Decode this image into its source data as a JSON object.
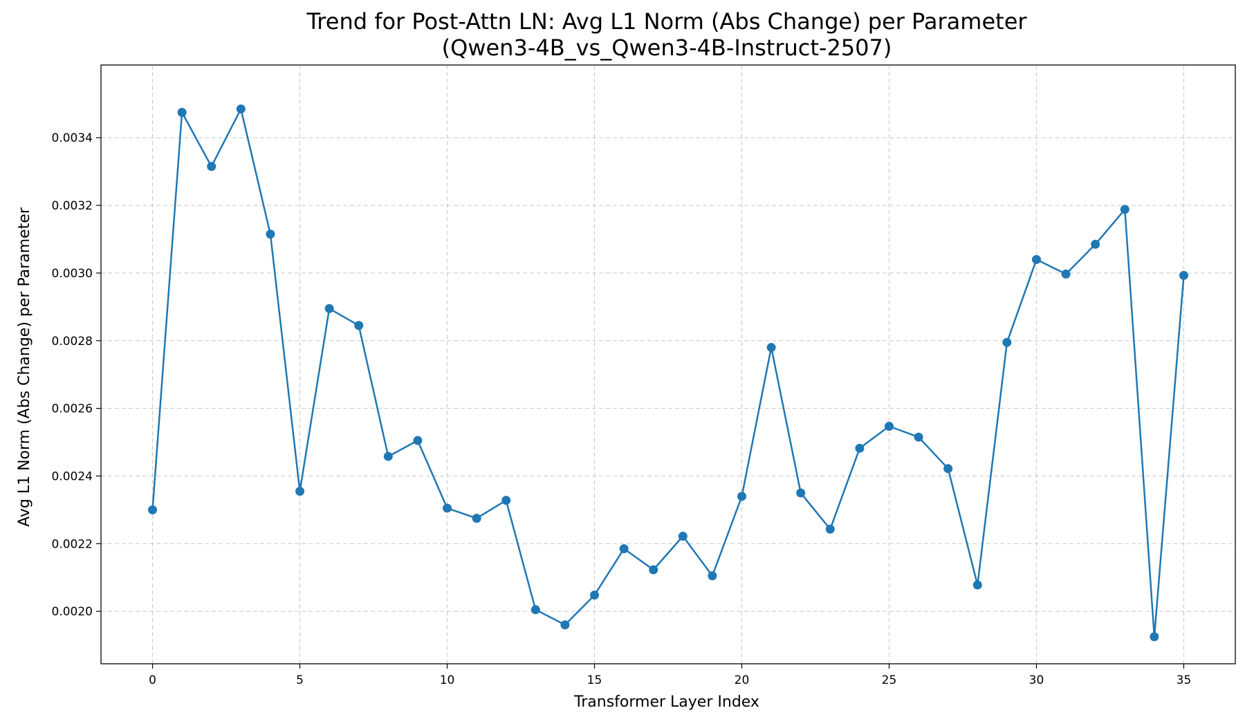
{
  "chart_data": {
    "type": "line",
    "title": "Trend for Post-Attn LN: Avg L1 Norm (Abs Change) per Parameter",
    "subtitle": "(Qwen3-4B_vs_Qwen3-4B-Instruct-2507)",
    "xlabel": "Transformer Layer Index",
    "ylabel": "Avg L1 Norm (Abs Change) per Parameter",
    "xlim": [
      -1.75,
      36.75
    ],
    "ylim": [
      0.001845,
      0.003615
    ],
    "xticks": [
      0,
      5,
      10,
      15,
      20,
      25,
      30,
      35
    ],
    "xtick_labels": [
      "0",
      "5",
      "10",
      "15",
      "20",
      "25",
      "30",
      "35"
    ],
    "yticks": [
      0.002,
      0.0022,
      0.0024,
      0.0026,
      0.0028,
      0.003,
      0.0032,
      0.0034
    ],
    "ytick_labels": [
      "0.0020",
      "0.0022",
      "0.0024",
      "0.0026",
      "0.0028",
      "0.0030",
      "0.0032",
      "0.0034"
    ],
    "grid": true,
    "legend": "none",
    "color": "#1f77b4",
    "series": [
      {
        "x": [
          0,
          1,
          2,
          3,
          4,
          5,
          6,
          7,
          8,
          9,
          10,
          11,
          12,
          13,
          14,
          15,
          16,
          17,
          18,
          19,
          20,
          21,
          22,
          23,
          24,
          25,
          26,
          27,
          28,
          29,
          30,
          31,
          32,
          33,
          34,
          35
        ],
        "values": [
          0.0023,
          0.003475,
          0.003315,
          0.003485,
          0.003115,
          0.002355,
          0.002895,
          0.002845,
          0.002458,
          0.002505,
          0.002305,
          0.002275,
          0.002328,
          0.002005,
          0.00196,
          0.002048,
          0.002185,
          0.002123,
          0.002222,
          0.002105,
          0.00234,
          0.00278,
          0.00235,
          0.002243,
          0.002482,
          0.002547,
          0.002515,
          0.002422,
          0.002078,
          0.002795,
          0.00304,
          0.002997,
          0.003085,
          0.003188,
          0.001925,
          0.002993
        ]
      }
    ]
  }
}
